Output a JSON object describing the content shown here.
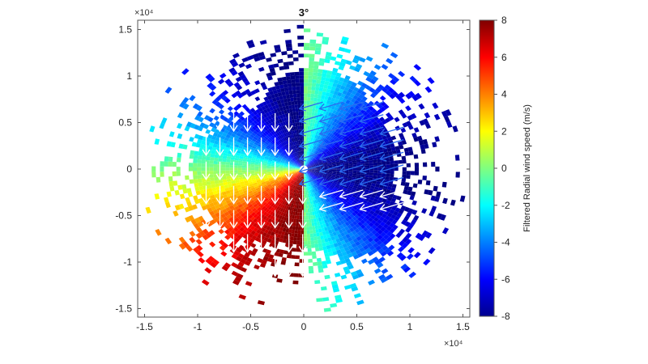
{
  "chart_data": {
    "type": "heatmap",
    "title": "3°",
    "x_exponent": "×10⁴",
    "y_exponent": "×10⁴",
    "xlim": [
      -1.6,
      1.6
    ],
    "ylim": [
      -1.55,
      1.6
    ],
    "x_ticks": [
      -1.5,
      -1,
      -0.5,
      0,
      0.5,
      1,
      1.5
    ],
    "x_tick_labels": [
      "-1.5",
      "-1",
      "-0.5",
      "0",
      "0.5",
      "1",
      "1.5"
    ],
    "y_ticks": [
      1.5,
      1,
      0.5,
      0,
      -0.5,
      -1,
      -1.5
    ],
    "y_tick_labels": [
      "1.5",
      "1",
      "0.5",
      "0",
      "-0.5",
      "-1",
      "-1.5"
    ],
    "colorbar": {
      "label": "Filtered Radial wind speed (m/s)",
      "range": [
        -8,
        8
      ],
      "ticks": [
        8,
        6,
        4,
        2,
        0,
        -2,
        -4,
        -6,
        -8
      ],
      "tick_labels": [
        "8",
        "6",
        "4",
        "2",
        "0",
        "-2",
        "-4",
        "-6",
        "-8"
      ]
    },
    "wind": {
      "west_sector_direction": "south",
      "east_sector_direction": "west",
      "max_radial_speed": 8
    },
    "grid": false
  }
}
